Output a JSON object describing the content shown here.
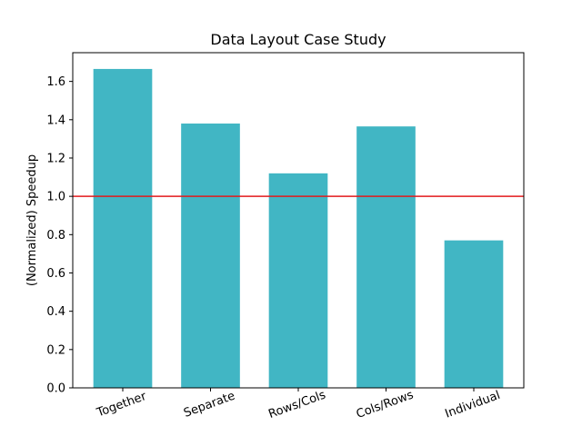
{
  "chart_data": {
    "type": "bar",
    "title": "Data Layout Case Study",
    "xlabel": "",
    "ylabel": "(Normalized) Speedup",
    "categories": [
      "Together",
      "Separate",
      "Rows/Cols",
      "Cols/Rows",
      "Individual"
    ],
    "values": [
      1.665,
      1.38,
      1.12,
      1.365,
      0.77
    ],
    "ylim": [
      0,
      1.75
    ],
    "yticks": [
      "0.0",
      "0.2",
      "0.4",
      "0.6",
      "0.8",
      "1.0",
      "1.2",
      "1.4",
      "1.6"
    ],
    "reference_line": 1.0,
    "bar_color": "#41b6c4",
    "reference_line_color": "#e31a1c",
    "grid": false
  }
}
